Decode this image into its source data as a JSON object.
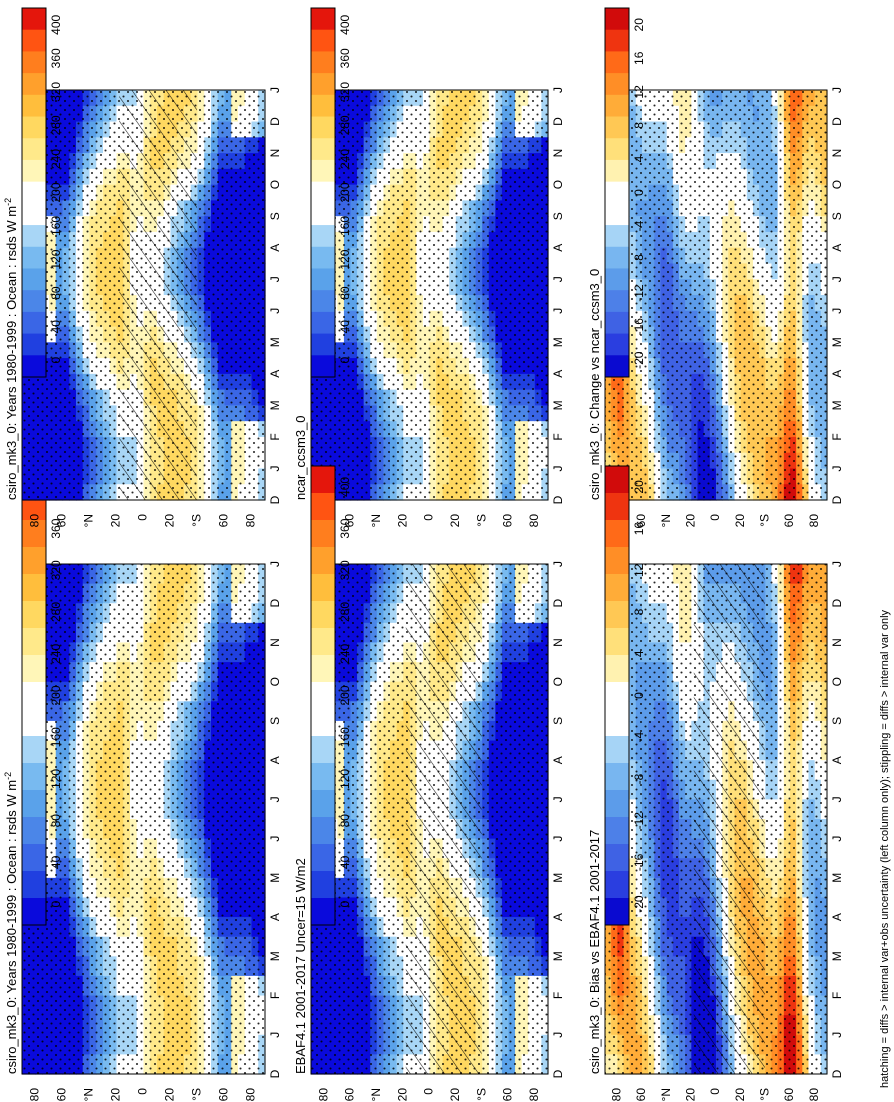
{
  "footnote": "hatching = diffs > internal var+obs uncertainty (left column only); stippling = diffs > internal var only",
  "colors": {
    "abs_scale": [
      "#0a0adc",
      "#2040e0",
      "#3a66e6",
      "#4b86e8",
      "#5aa2ea",
      "#78baf0",
      "#a8d6f6",
      "#ffffff",
      "#ffffff",
      "#fff6b8",
      "#ffe98a",
      "#ffd860",
      "#ffbe3c",
      "#ffa02c",
      "#ff7e1e",
      "#ff5412",
      "#e4160c"
    ],
    "diff_scale": [
      "#0a0ad0",
      "#2a3ee0",
      "#3f62e4",
      "#4d80e8",
      "#5c9cea",
      "#78b6f0",
      "#a6d4f6",
      "#ffffff",
      "#ffffff",
      "#fff2b0",
      "#ffe07a",
      "#ffc854",
      "#ffac38",
      "#ff8e26",
      "#ff6a18",
      "#ef3410",
      "#d10b0b"
    ]
  },
  "chart_data": [
    {
      "id": "panel-a",
      "type": "heatmap",
      "title": "csiro_mk3_0: Years 1980-1999 : Ocean : rsds W m",
      "title_sup": "-2",
      "xlabel": "",
      "ylabel": "",
      "x_ticks": [
        "J",
        "F",
        "M",
        "A",
        "M",
        "J",
        "J",
        "A",
        "S",
        "O",
        "N",
        "D",
        "J"
      ],
      "x_start_label": "D",
      "y_ticks": [
        "80",
        "60",
        "°N",
        "20",
        "0",
        "20",
        "°S",
        "60",
        "80"
      ],
      "ylim": [
        -90,
        90
      ],
      "colorbar": {
        "labels": [
          "400",
          "360",
          "320",
          "280",
          "240",
          "200",
          "160",
          "120",
          "80",
          "40",
          "0"
        ],
        "range": [
          0,
          420
        ]
      },
      "overlay": "hatching",
      "kind": "abs"
    },
    {
      "id": "panel-b",
      "type": "heatmap",
      "title": "csiro_mk3_0: Years 1980-1999 : Ocean : rsds W m",
      "title_sup": "-2",
      "x_ticks": [
        "J",
        "F",
        "M",
        "A",
        "M",
        "J",
        "J",
        "A",
        "S",
        "O",
        "N",
        "D",
        "J"
      ],
      "x_start_label": "D",
      "y_ticks": [
        "80",
        "60",
        "°N",
        "20",
        "0",
        "20",
        "°S",
        "60",
        "80"
      ],
      "ylim": [
        -90,
        90
      ],
      "colorbar": {
        "labels": [
          "400",
          "360",
          "320",
          "280",
          "240",
          "200",
          "160",
          "120",
          "80",
          "40",
          "0"
        ],
        "range": [
          0,
          420
        ]
      },
      "overlay": "stipple",
      "kind": "abs"
    },
    {
      "id": "panel-c",
      "type": "heatmap",
      "title": "EBAF4.1 2001-2017 Uncer=15 W/m2",
      "x_ticks": [
        "J",
        "F",
        "M",
        "A",
        "M",
        "J",
        "J",
        "A",
        "S",
        "O",
        "N",
        "D",
        "J"
      ],
      "x_start_label": "D",
      "y_ticks": [
        "80",
        "60",
        "°N",
        "20",
        "0",
        "20",
        "°S",
        "60",
        "80"
      ],
      "ylim": [
        -90,
        90
      ],
      "colorbar": {
        "labels": [
          "400",
          "360",
          "320",
          "280",
          "240",
          "200",
          "160",
          "120",
          "80",
          "40",
          "0"
        ],
        "range": [
          0,
          420
        ]
      },
      "overlay": "hatching",
      "kind": "abs"
    },
    {
      "id": "panel-d",
      "type": "heatmap",
      "title": "ncar_ccsm3_0",
      "x_ticks": [
        "J",
        "F",
        "M",
        "A",
        "M",
        "J",
        "J",
        "A",
        "S",
        "O",
        "N",
        "D",
        "J"
      ],
      "x_start_label": "D",
      "y_ticks": [
        "80",
        "60",
        "°N",
        "20",
        "0",
        "20",
        "°S",
        "60",
        "80"
      ],
      "ylim": [
        -90,
        90
      ],
      "colorbar": {
        "labels": [
          "400",
          "360",
          "320",
          "280",
          "240",
          "200",
          "160",
          "120",
          "80",
          "40",
          "0"
        ],
        "range": [
          0,
          420
        ]
      },
      "overlay": "stipple",
      "kind": "abs"
    },
    {
      "id": "panel-e",
      "type": "heatmap",
      "title": "csiro_mk3_0: Bias vs EBAF4.1 2001-2017",
      "x_ticks": [
        "J",
        "F",
        "M",
        "A",
        "M",
        "J",
        "J",
        "A",
        "S",
        "O",
        "N",
        "D",
        "J"
      ],
      "x_start_label": "D",
      "y_ticks": [
        "80",
        "60",
        "°N",
        "20",
        "0",
        "20",
        "°S",
        "60",
        "80"
      ],
      "ylim": [
        -90,
        90
      ],
      "colorbar": {
        "labels": [
          "20",
          "16",
          "12",
          "8",
          "4",
          "0",
          "-4",
          "-8",
          "-12",
          "-16",
          "-20"
        ],
        "range": [
          -22,
          22
        ]
      },
      "overlay": "hatching",
      "kind": "bias"
    },
    {
      "id": "panel-f",
      "type": "heatmap",
      "title": "csiro_mk3_0: Change vs ncar_ccsm3_0",
      "x_ticks": [
        "J",
        "F",
        "M",
        "A",
        "M",
        "J",
        "J",
        "A",
        "S",
        "O",
        "N",
        "D",
        "J"
      ],
      "x_start_label": "D",
      "y_ticks": [
        "80",
        "60",
        "°N",
        "20",
        "0",
        "20",
        "°S",
        "60",
        "80"
      ],
      "ylim": [
        -90,
        90
      ],
      "colorbar": {
        "labels": [
          "20",
          "16",
          "12",
          "8",
          "4",
          "0",
          "-4",
          "-8",
          "-12",
          "-16",
          "-20"
        ],
        "range": [
          -22,
          22
        ]
      },
      "overlay": "stipple",
      "kind": "change"
    }
  ]
}
